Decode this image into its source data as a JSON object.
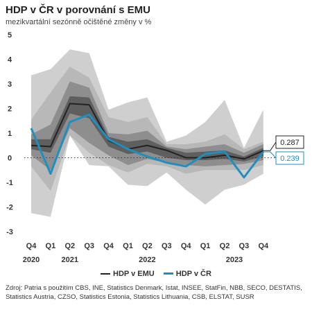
{
  "title": "HDP v ČR v porovnání s EMU",
  "subtitle": "mezikvartální sezónně očištěné změny v %",
  "source": "Zdroj: Patria s použitím CBS, INE, Statistics Denmark, Istat, INSEE, StatFin, NBB, SECO, DESTATIS, Statistics Austria, CZSO, Statistics Estonia, Statistics Lithuania, CSB, ELSTAT, SUSR",
  "colors": {
    "emu": "#222222",
    "cz": "#1f8fc0",
    "band_outer": "#cfcfcf",
    "band_mid": "#b8b8b8",
    "band_inner": "#8e8e8e",
    "band_core": "#5f5f5f"
  },
  "chart_data": {
    "type": "area",
    "title": "HDP v ČR v porovnání s EMU",
    "subtitle": "mezikvartální sezónně očištěné změny v %",
    "categories": [
      "Q4",
      "Q1",
      "Q2",
      "Q3",
      "Q4",
      "Q1",
      "Q2",
      "Q3",
      "Q4",
      "Q1",
      "Q2",
      "Q3",
      "Q4"
    ],
    "years": [
      {
        "label": "2020",
        "index": 0
      },
      {
        "label": "2021",
        "index": 2
      },
      {
        "label": "2022",
        "index": 6
      },
      {
        "label": "2023",
        "index": 10.5
      }
    ],
    "ylim": [
      -3,
      5
    ],
    "yticks": [
      -3,
      -2,
      -1,
      0,
      1,
      2,
      3,
      4,
      5
    ],
    "series": [
      {
        "name": "HDP v EMU",
        "values": [
          0.5,
          0.45,
          2.2,
          2.15,
          0.7,
          0.35,
          0.5,
          0.3,
          0.0,
          0.0,
          0.1,
          -0.05,
          0.287
        ]
      },
      {
        "name": "HDP v ČR",
        "values": [
          1.2,
          -0.65,
          1.45,
          1.75,
          0.75,
          0.35,
          0.05,
          -0.2,
          -0.35,
          0.15,
          0.25,
          -0.8,
          0.239
        ]
      }
    ],
    "bands": [
      {
        "lower": [
          -2.25,
          -2.4,
          0.9,
          -0.3,
          -0.35,
          -1.1,
          -1.15,
          -0.6,
          -1.3,
          -1.9,
          -1.3,
          -1.1,
          -0.65
        ],
        "upper": [
          3.35,
          3.6,
          4.4,
          4.25,
          1.95,
          2.25,
          2.45,
          0.65,
          0.9,
          1.45,
          2.35,
          0.4,
          1.95
        ]
      },
      {
        "lower": [
          -0.35,
          -1.35,
          0.9,
          0.2,
          -0.3,
          -0.6,
          -0.25,
          -0.35,
          -0.65,
          -0.5,
          -0.5,
          -0.5,
          -0.3
        ],
        "upper": [
          1.55,
          2.65,
          3.7,
          3.25,
          1.65,
          1.45,
          1.65,
          0.55,
          0.55,
          0.65,
          0.95,
          0.35,
          0.65
        ]
      },
      {
        "lower": [
          0.1,
          -0.5,
          1.2,
          0.6,
          0.1,
          -0.3,
          -0.05,
          -0.2,
          -0.3,
          -0.35,
          -0.3,
          -0.25,
          -0.1
        ],
        "upper": [
          0.95,
          1.35,
          3.1,
          2.85,
          1.0,
          0.95,
          1.1,
          0.45,
          0.35,
          0.45,
          0.55,
          0.2,
          0.55
        ]
      },
      {
        "lower": [
          0.35,
          0.2,
          1.8,
          1.6,
          0.45,
          0.15,
          0.25,
          0.0,
          -0.1,
          -0.1,
          -0.05,
          -0.15,
          0.05
        ],
        "upper": [
          0.75,
          0.75,
          2.5,
          2.45,
          0.85,
          0.65,
          0.75,
          0.4,
          0.2,
          0.25,
          0.3,
          0.05,
          0.4
        ]
      }
    ],
    "data_labels": [
      {
        "series": "HDP v EMU",
        "text": "0.287"
      },
      {
        "series": "HDP v ČR",
        "text": "0.239"
      }
    ],
    "zero_line": "dotted",
    "legend": "bottom",
    "grid": false
  }
}
